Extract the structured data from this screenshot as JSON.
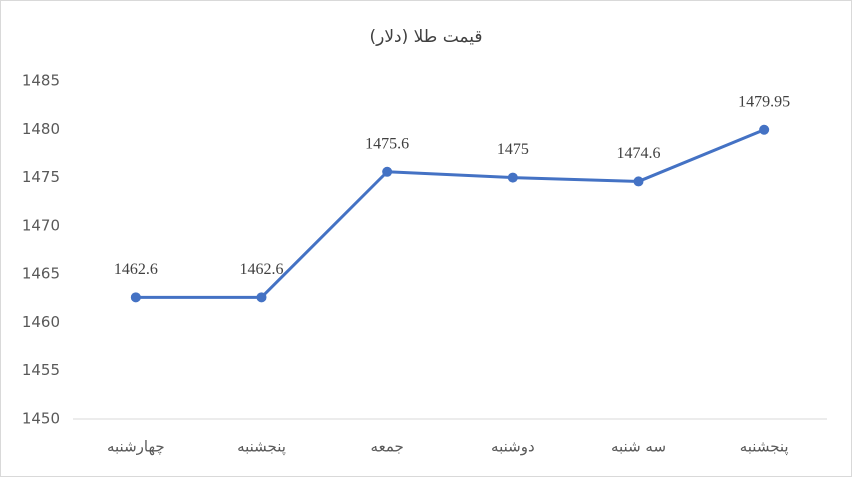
{
  "chart_data": {
    "type": "line",
    "title": "قیمت طلا (دلار)",
    "categories": [
      "چهارشنبه",
      "پنجشنبه",
      "جمعه",
      "دوشنبه",
      "سه شنبه",
      "پنجشنبه"
    ],
    "values": [
      1462.6,
      1462.6,
      1475.6,
      1475,
      1474.6,
      1479.95
    ],
    "color": "#4472c4",
    "ylim": [
      1450,
      1485
    ],
    "yticks": [
      1450,
      1455,
      1460,
      1465,
      1470,
      1475,
      1480,
      1485
    ],
    "grid": false
  }
}
